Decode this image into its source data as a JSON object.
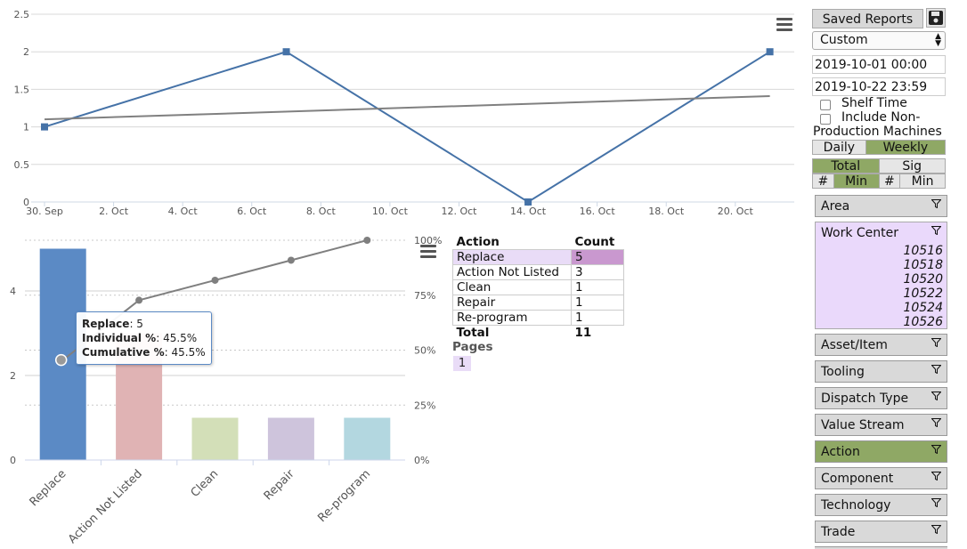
{
  "line_chart": {
    "type": "line",
    "x_tick_labels": [
      "30. Sep",
      "2. Oct",
      "4. Oct",
      "6. Oct",
      "8. Oct",
      "10. Oct",
      "12. Oct",
      "14. Oct",
      "16. Oct",
      "18. Oct",
      "20. Oct"
    ],
    "y_tick_labels": [
      "0",
      "0.5",
      "1",
      "1.5",
      "2",
      "2.5"
    ],
    "ylim": [
      0,
      2.5
    ],
    "series": [
      {
        "color": "#4572a7",
        "marker": "square",
        "points": [
          [
            "2019-09-30",
            1
          ],
          [
            "2019-10-07",
            2
          ],
          [
            "2019-10-14",
            0
          ],
          [
            "2019-10-21",
            2
          ]
        ]
      },
      {
        "color": "#808080",
        "marker": "none",
        "points": [
          [
            "2019-09-30",
            1.1
          ],
          [
            "2019-10-21",
            1.41
          ]
        ]
      }
    ]
  },
  "chart_data": {
    "type": "bar",
    "categories": [
      "Replace",
      "Action Not Listed",
      "Clean",
      "Repair",
      "Re-program"
    ],
    "values": [
      5,
      3,
      1,
      1,
      1
    ],
    "colors": [
      "#5b8ac5",
      "#e0b3b4",
      "#d3dfb8",
      "#cec4dc",
      "#b3d7e0"
    ],
    "ylim": [
      0,
      5.2
    ],
    "y_tick_labels": [
      "0",
      "2",
      "4"
    ],
    "y2_tick_labels": [
      "0%",
      "25%",
      "50%",
      "75%",
      "100%"
    ],
    "cumulative_percent": [
      45.5,
      72.7,
      81.8,
      90.9,
      100
    ],
    "highlighted_index": 0
  },
  "tooltip": {
    "category": "Replace",
    "category_value": "5",
    "individual_label": "Individual %",
    "individual_value": "45.5%",
    "cumulative_label": "Cumulative %",
    "cumulative_value": "45.5%"
  },
  "table": {
    "headers": [
      "Action",
      "Count"
    ],
    "rows": [
      {
        "action": "Replace",
        "count": "5"
      },
      {
        "action": "Action Not Listed",
        "count": "3"
      },
      {
        "action": "Clean",
        "count": "1"
      },
      {
        "action": "Repair",
        "count": "1"
      },
      {
        "action": "Re-program",
        "count": "1"
      }
    ],
    "total_label": "Total",
    "total_value": "11",
    "pages_label": "Pages",
    "current_page": "1"
  },
  "panel": {
    "saved_reports_label": "Saved Reports",
    "range_value": "Custom",
    "start_value": "2019-10-01 00:00",
    "end_value": "2019-10-22 23:59",
    "shelf_time_label": "Shelf Time",
    "include_label_1": "Include Non-",
    "include_label_2": "Production Machines",
    "daily_label": "Daily",
    "weekly_label": "Weekly",
    "total_label": "Total",
    "sig_label": "Sig",
    "hash1_label": "#",
    "min1_label": "Min",
    "hash2_label": "#",
    "min2_label": "Min",
    "work_center_label": "Work Center",
    "work_center_items": [
      "10516",
      "10518",
      "10520",
      "10522",
      "10524",
      "10526"
    ],
    "filters": [
      "Area",
      "Asset/Item",
      "Tooling",
      "Dispatch Type",
      "Value Stream",
      "Action",
      "Component",
      "Technology",
      "Trade"
    ],
    "active_filter": "Action",
    "colors": {
      "active": "#8fa865",
      "selection": "#ead9fb"
    }
  }
}
